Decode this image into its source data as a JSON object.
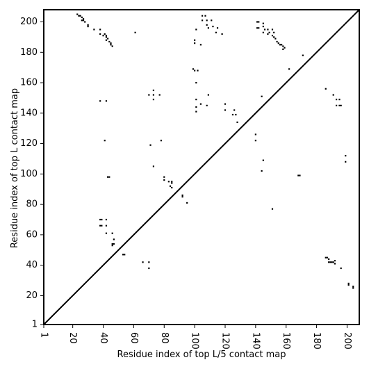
{
  "chart_data": {
    "type": "scatter",
    "xlabel": "Residue index of top L/5 contact map",
    "ylabel": "Residue index of top L contact map",
    "xlim": [
      1,
      208
    ],
    "ylim": [
      1,
      208
    ],
    "xticks": [
      1,
      20,
      40,
      60,
      80,
      100,
      120,
      140,
      160,
      180,
      200
    ],
    "yticks": [
      1,
      20,
      40,
      60,
      80,
      100,
      120,
      140,
      160,
      180,
      200
    ],
    "xtick_rotation": -90,
    "marker": "square",
    "marker_color": "#000000",
    "diagonal": true,
    "grid": false,
    "series": [
      {
        "points": [
          [
            23,
            205
          ],
          [
            24,
            204
          ],
          [
            25,
            204
          ],
          [
            26,
            203
          ],
          [
            27,
            202
          ],
          [
            26,
            201
          ],
          [
            27,
            201
          ],
          [
            28,
            200
          ],
          [
            30,
            198
          ],
          [
            30,
            197
          ],
          [
            34,
            195
          ],
          [
            38,
            195
          ],
          [
            38,
            192
          ],
          [
            40,
            191
          ],
          [
            41,
            192
          ],
          [
            42,
            191
          ],
          [
            42,
            190
          ],
          [
            43,
            189
          ],
          [
            42,
            188
          ],
          [
            44,
            187
          ],
          [
            45,
            186
          ],
          [
            45,
            185
          ],
          [
            46,
            184
          ],
          [
            61,
            193
          ],
          [
            101,
            195
          ],
          [
            105,
            204
          ],
          [
            105,
            201
          ],
          [
            107,
            204
          ],
          [
            108,
            201
          ],
          [
            108,
            198
          ],
          [
            109,
            196
          ],
          [
            111,
            201
          ],
          [
            112,
            197
          ],
          [
            114,
            193
          ],
          [
            115,
            196
          ],
          [
            118,
            192
          ],
          [
            100,
            188
          ],
          [
            100,
            186
          ],
          [
            104,
            185
          ],
          [
            141,
            200
          ],
          [
            142,
            200
          ],
          [
            141,
            196
          ],
          [
            142,
            196
          ],
          [
            145,
            199
          ],
          [
            145,
            197
          ],
          [
            146,
            195
          ],
          [
            145,
            193
          ],
          [
            148,
            195
          ],
          [
            149,
            193
          ],
          [
            148,
            192
          ],
          [
            151,
            195
          ],
          [
            152,
            193
          ],
          [
            151,
            191
          ],
          [
            152,
            190
          ],
          [
            153,
            189
          ],
          [
            154,
            187
          ],
          [
            155,
            186
          ],
          [
            156,
            185
          ],
          [
            157,
            185
          ],
          [
            158,
            184
          ],
          [
            159,
            183
          ],
          [
            158,
            182
          ],
          [
            171,
            178
          ],
          [
            162,
            169
          ],
          [
            99,
            169
          ],
          [
            100,
            168
          ],
          [
            102,
            168
          ],
          [
            101,
            160
          ],
          [
            70,
            152
          ],
          [
            73,
            152
          ],
          [
            73,
            155
          ],
          [
            77,
            152
          ],
          [
            73,
            149
          ],
          [
            101,
            149
          ],
          [
            104,
            146
          ],
          [
            108,
            145
          ],
          [
            101,
            141
          ],
          [
            101,
            144
          ],
          [
            109,
            152
          ],
          [
            120,
            146
          ],
          [
            120,
            142
          ],
          [
            126,
            142
          ],
          [
            127,
            139
          ],
          [
            125,
            139
          ],
          [
            128,
            134
          ],
          [
            38,
            148
          ],
          [
            42,
            148
          ],
          [
            41,
            122
          ],
          [
            71,
            119
          ],
          [
            78,
            122
          ],
          [
            73,
            105
          ],
          [
            43,
            98
          ],
          [
            44,
            98
          ],
          [
            80,
            98
          ],
          [
            80,
            96
          ],
          [
            83,
            95
          ],
          [
            85,
            95
          ],
          [
            85,
            94
          ],
          [
            84,
            92
          ],
          [
            85,
            91
          ],
          [
            92,
            86
          ],
          [
            92,
            85
          ],
          [
            95,
            81
          ],
          [
            140,
            126
          ],
          [
            140,
            122
          ],
          [
            145,
            109
          ],
          [
            144,
            102
          ],
          [
            144,
            151
          ],
          [
            168,
            99
          ],
          [
            169,
            99
          ],
          [
            151,
            77
          ],
          [
            186,
            156
          ],
          [
            191,
            152
          ],
          [
            193,
            149
          ],
          [
            195,
            149
          ],
          [
            193,
            145
          ],
          [
            195,
            145
          ],
          [
            196,
            145
          ],
          [
            199,
            112
          ],
          [
            199,
            108
          ],
          [
            38,
            70
          ],
          [
            39,
            70
          ],
          [
            42,
            70
          ],
          [
            38,
            66
          ],
          [
            39,
            66
          ],
          [
            42,
            66
          ],
          [
            42,
            61
          ],
          [
            46,
            61
          ],
          [
            47,
            57
          ],
          [
            46,
            54
          ],
          [
            47,
            54
          ],
          [
            46,
            53
          ],
          [
            53,
            47
          ],
          [
            54,
            47
          ],
          [
            66,
            42
          ],
          [
            70,
            42
          ],
          [
            70,
            38
          ],
          [
            186,
            45
          ],
          [
            187,
            45
          ],
          [
            188,
            44
          ],
          [
            188,
            42
          ],
          [
            189,
            42
          ],
          [
            190,
            42
          ],
          [
            191,
            42
          ],
          [
            192,
            43
          ],
          [
            192,
            41
          ],
          [
            196,
            38
          ],
          [
            201,
            28
          ],
          [
            201,
            27
          ],
          [
            204,
            26
          ],
          [
            204,
            25
          ]
        ]
      }
    ]
  }
}
